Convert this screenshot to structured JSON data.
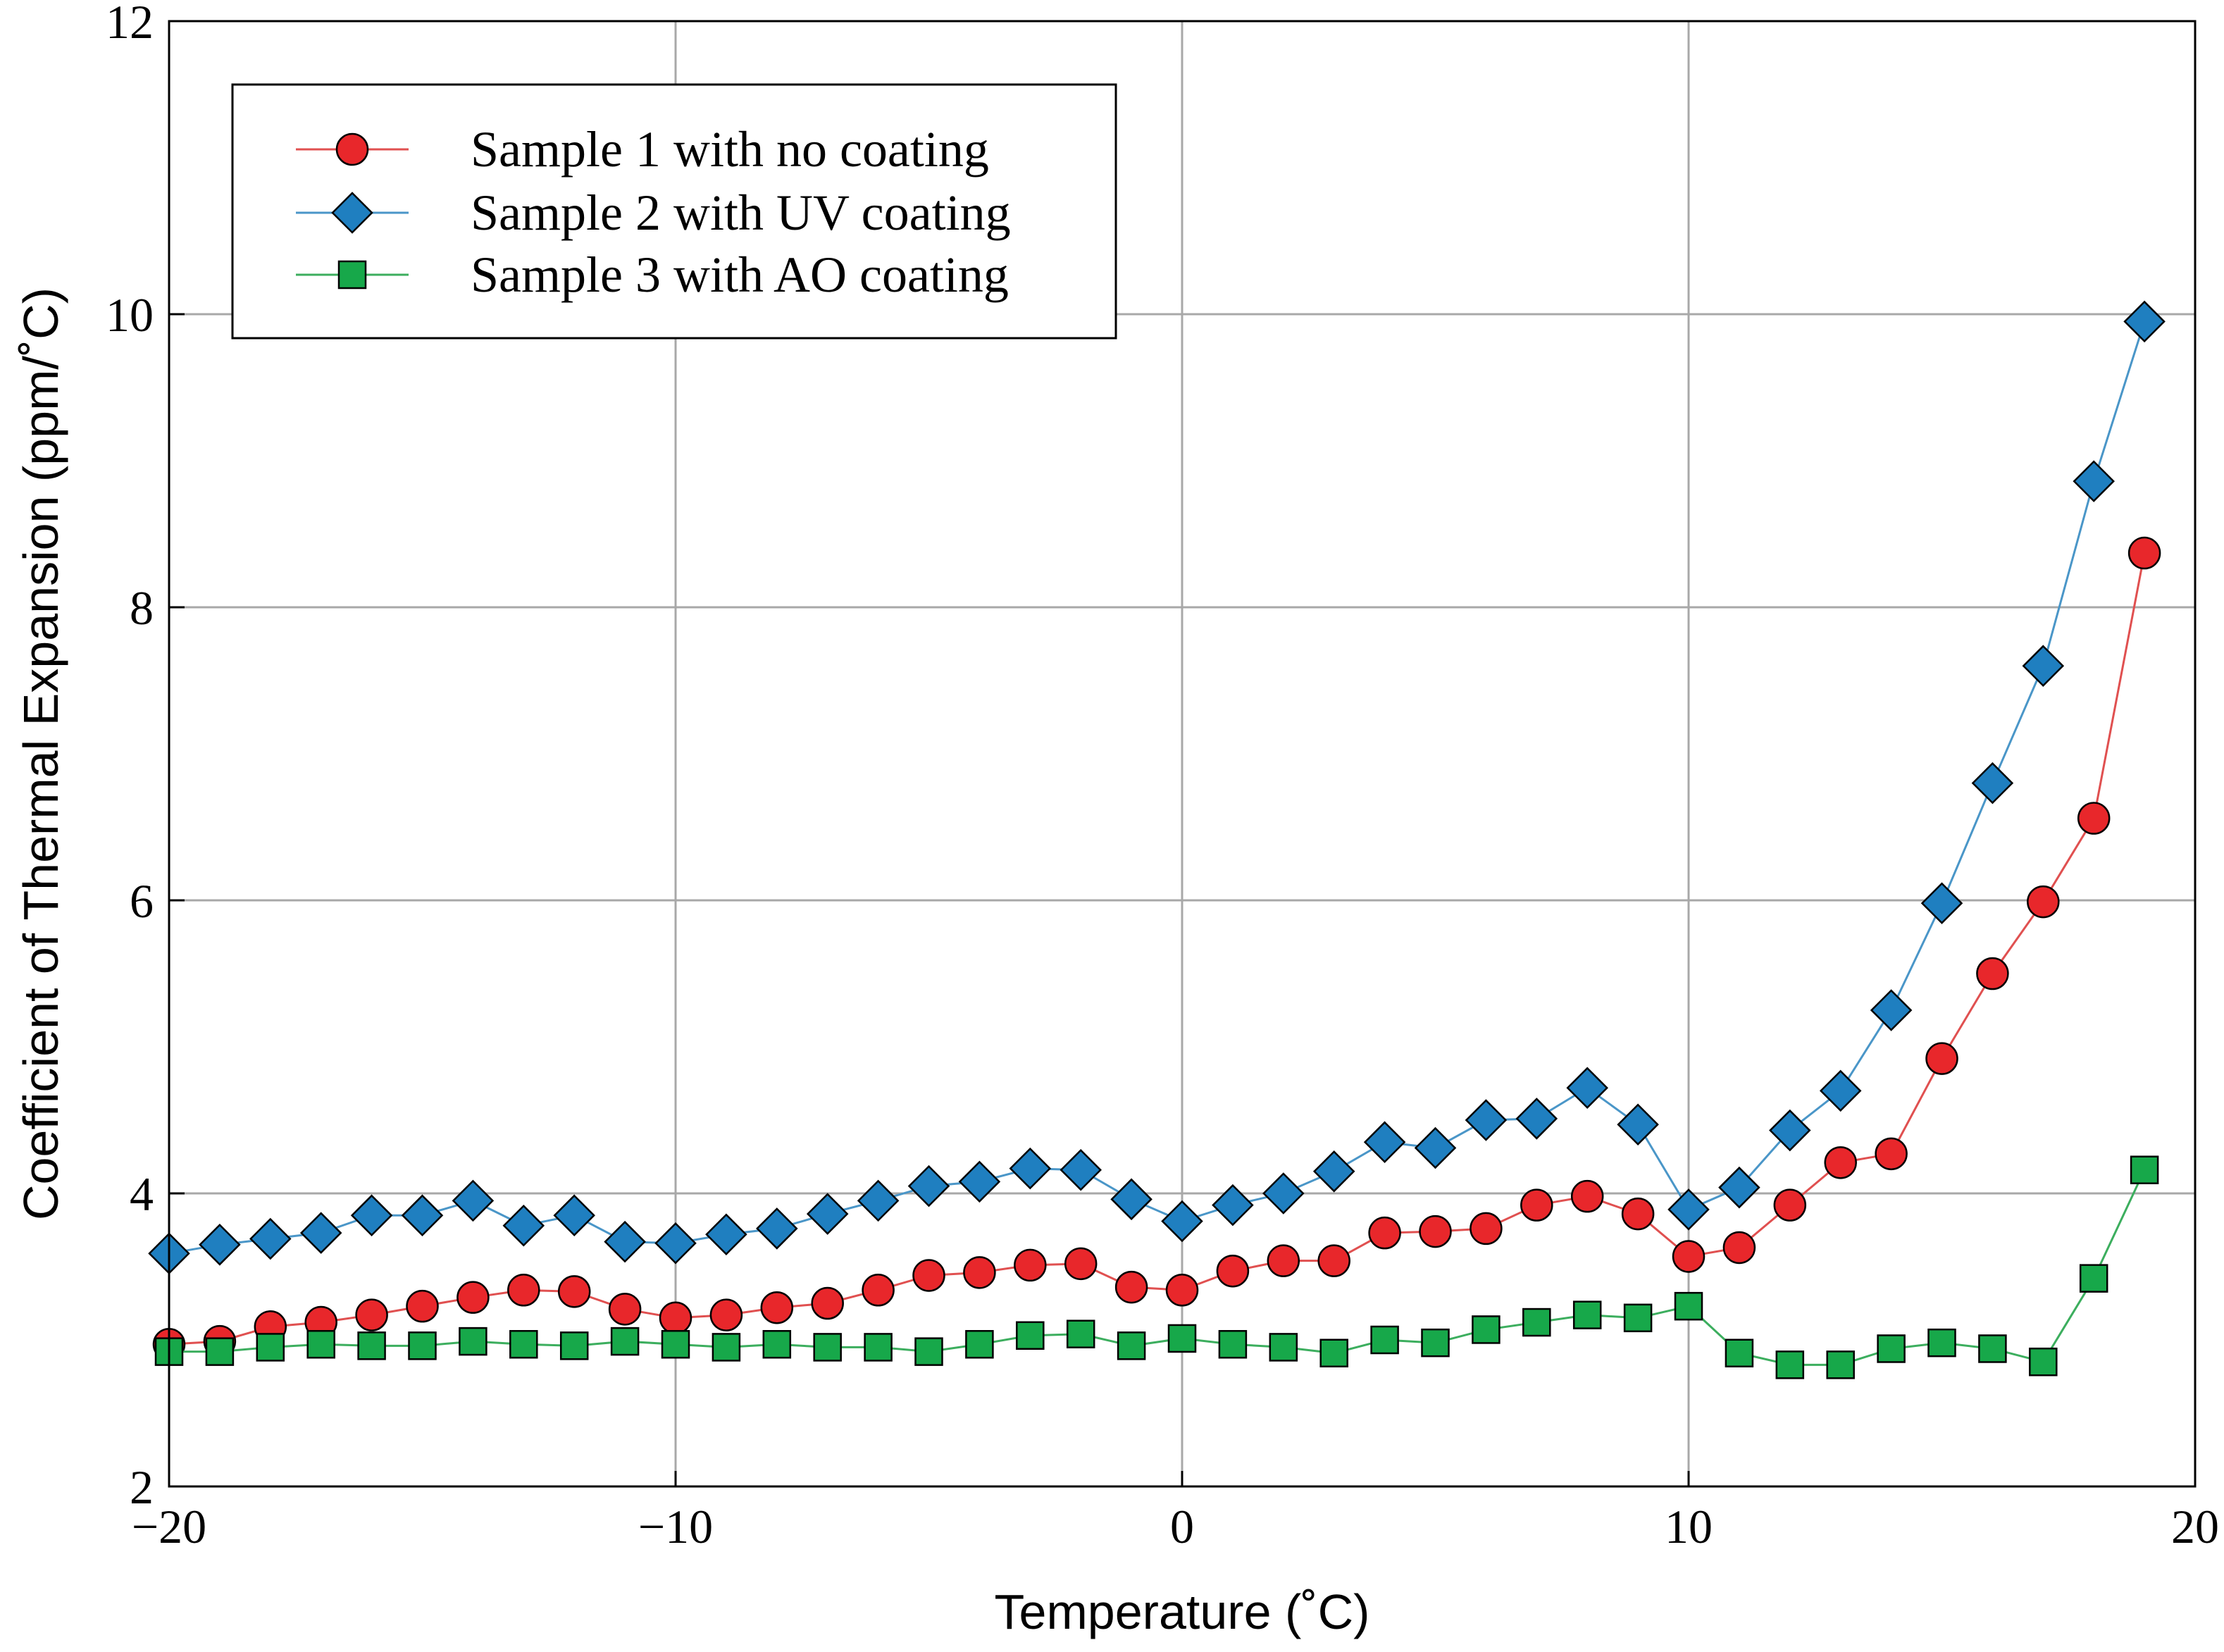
{
  "chart_data": {
    "type": "line",
    "title": "",
    "xlabel": "Temperature (˚C)",
    "ylabel": "Coefficient of Thermal Expansion (ppm/˚C)",
    "xlim": [
      -20,
      20
    ],
    "ylim": [
      2,
      12
    ],
    "xticks": [
      -20,
      -10,
      0,
      10,
      20
    ],
    "xtick_labels": [
      "−20",
      "−10",
      "0",
      "10",
      "20"
    ],
    "yticks": [
      2,
      4,
      6,
      8,
      10,
      12
    ],
    "ytick_labels": [
      "2",
      "4",
      "6",
      "8",
      "10",
      "12"
    ],
    "grid": true,
    "legend_position": "top-left",
    "x": [
      -20,
      -19,
      -18,
      -17,
      -16,
      -15,
      -14,
      -13,
      -12,
      -11,
      -10,
      -9,
      -8,
      -7,
      -6,
      -5,
      -4,
      -3,
      -2,
      -1,
      0,
      1,
      2,
      3,
      4,
      5,
      6,
      7,
      8,
      9,
      10,
      11,
      12,
      13,
      14,
      15,
      16,
      17,
      18,
      19
    ],
    "series": [
      {
        "name": "Sample 1 with no coating",
        "color": "#e8272b",
        "line_color": "#e05050",
        "marker": "circle",
        "values": [
          2.97,
          2.99,
          3.09,
          3.12,
          3.17,
          3.23,
          3.29,
          3.34,
          3.33,
          3.21,
          3.15,
          3.17,
          3.22,
          3.25,
          3.34,
          3.44,
          3.46,
          3.51,
          3.52,
          3.36,
          3.34,
          3.47,
          3.54,
          3.54,
          3.73,
          3.74,
          3.76,
          3.92,
          3.98,
          3.86,
          3.57,
          3.63,
          3.92,
          4.21,
          4.27,
          4.92,
          5.5,
          5.99,
          6.56,
          8.37
        ]
      },
      {
        "name": "Sample 2 with UV coating",
        "color": "#1f7fc0",
        "line_color": "#4a96c8",
        "marker": "diamond",
        "values": [
          3.59,
          3.65,
          3.69,
          3.73,
          3.85,
          3.85,
          3.95,
          3.78,
          3.85,
          3.67,
          3.66,
          3.72,
          3.76,
          3.86,
          3.95,
          4.05,
          4.08,
          4.17,
          4.16,
          3.96,
          3.81,
          3.92,
          4.0,
          4.15,
          4.35,
          4.31,
          4.5,
          4.51,
          4.72,
          4.47,
          3.89,
          4.04,
          4.43,
          4.7,
          5.25,
          5.98,
          6.8,
          7.6,
          8.86,
          9.95
        ]
      },
      {
        "name": "Sample 3 with AO coating",
        "color": "#17a84a",
        "line_color": "#3cae5e",
        "marker": "square",
        "values": [
          2.92,
          2.92,
          2.95,
          2.97,
          2.96,
          2.96,
          2.99,
          2.97,
          2.96,
          2.99,
          2.97,
          2.95,
          2.97,
          2.95,
          2.95,
          2.92,
          2.97,
          3.03,
          3.04,
          2.96,
          3.01,
          2.97,
          2.95,
          2.91,
          3.0,
          2.98,
          3.07,
          3.12,
          3.17,
          3.15,
          3.23,
          2.91,
          2.83,
          2.83,
          2.94,
          2.98,
          2.94,
          2.85,
          3.42,
          4.16
        ]
      }
    ]
  }
}
